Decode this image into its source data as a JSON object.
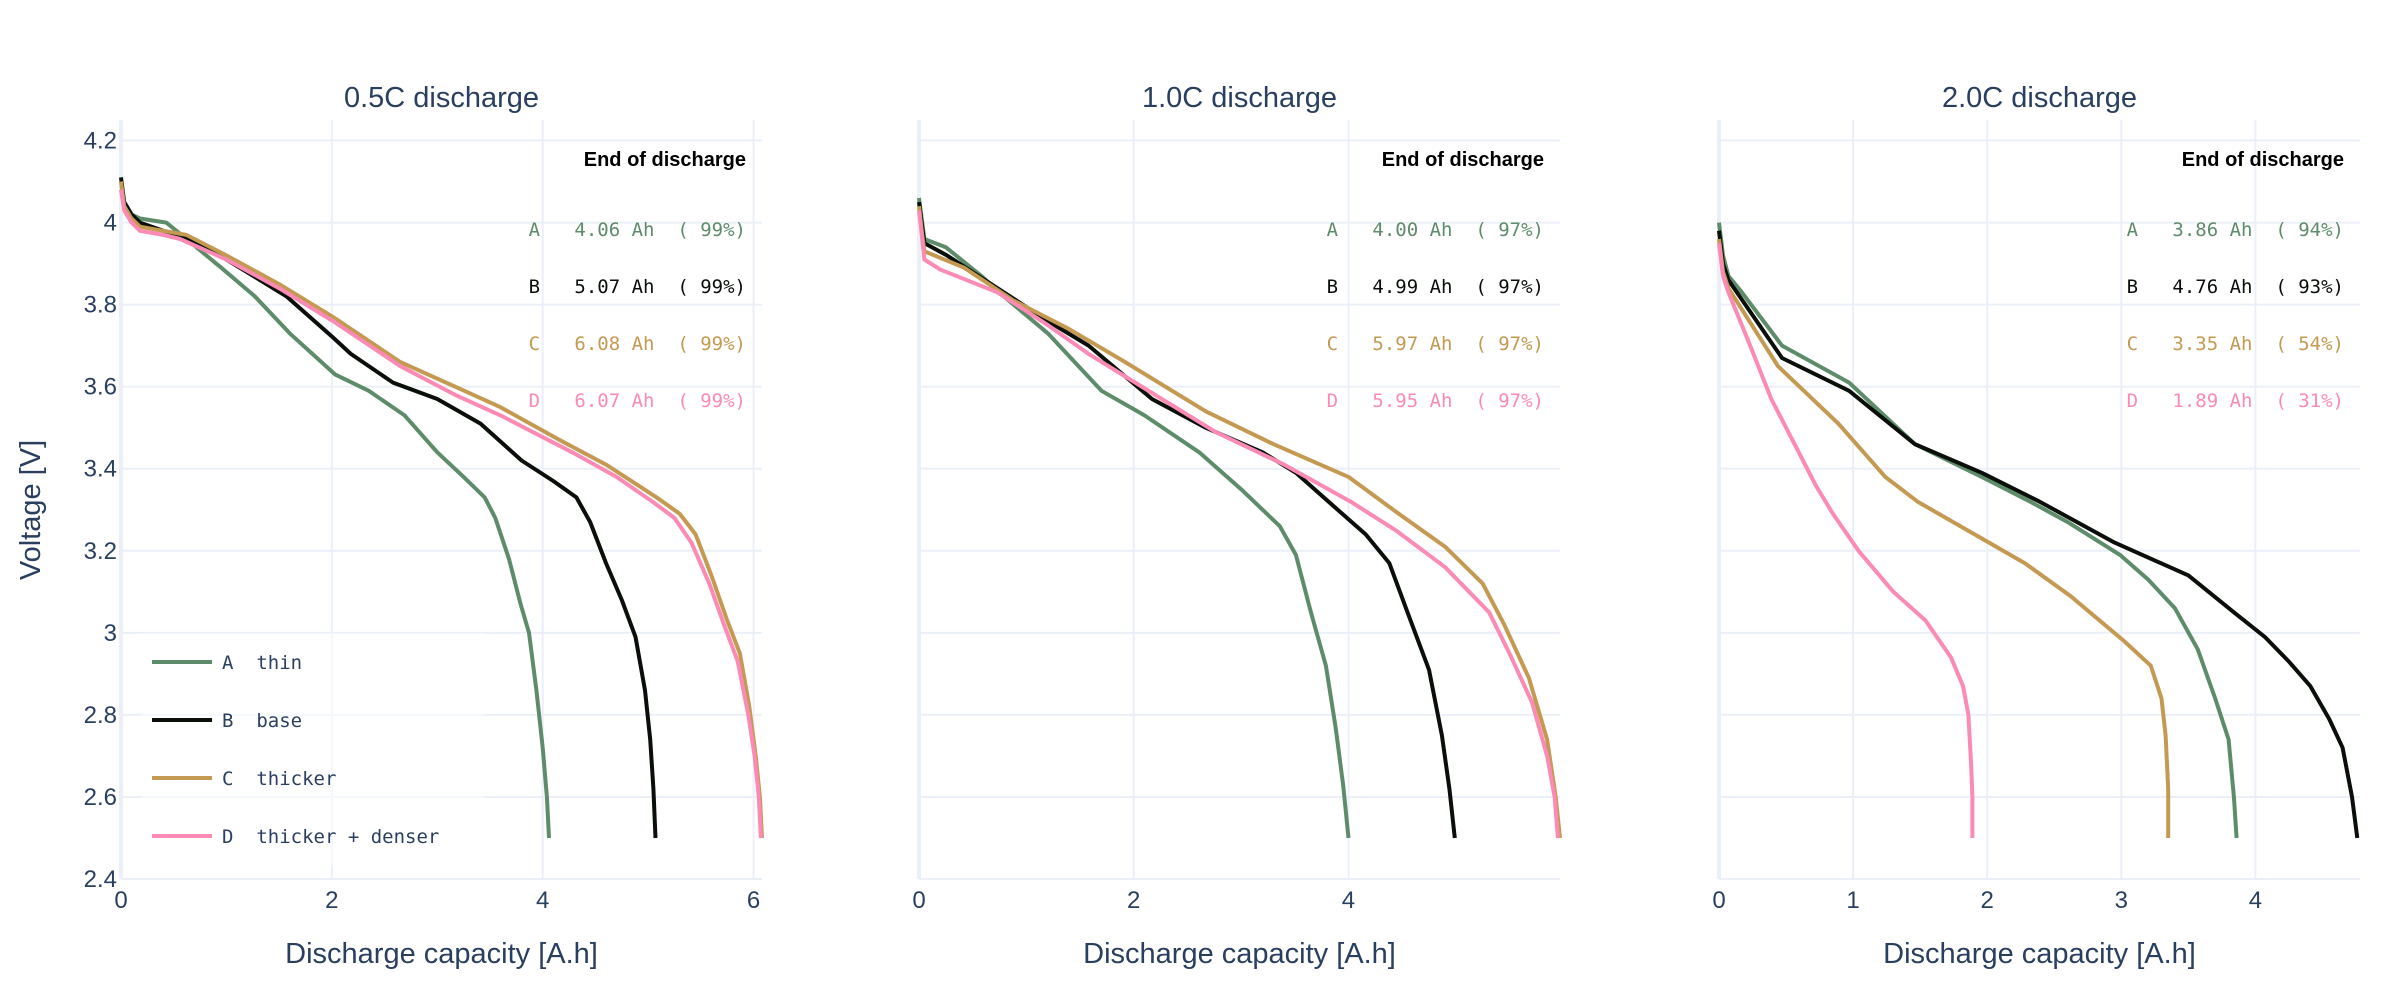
{
  "chart_data": {
    "type": "line",
    "ylabel": "Voltage [V]",
    "ylim": [
      2.4,
      4.25
    ],
    "yticks": [
      2.4,
      2.6,
      2.8,
      3.0,
      3.2,
      3.4,
      3.6,
      3.8,
      4.0,
      4.2
    ],
    "ytick_labels": [
      "2.4",
      "2.6",
      "2.8",
      "3",
      "3.2",
      "3.4",
      "3.6",
      "3.8",
      "4",
      "4.2"
    ],
    "grid": true,
    "legend": {
      "placement": "bottom-left of first panel",
      "entries": [
        {
          "key": "A",
          "name": "A  thin",
          "color": "#5e8c6a"
        },
        {
          "key": "B",
          "name": "B  base",
          "color": "#0a0f0a"
        },
        {
          "key": "C",
          "name": "C  thicker",
          "color": "#c49a52"
        },
        {
          "key": "D",
          "name": "D  thicker + denser",
          "color": "#fb8ab4"
        }
      ]
    },
    "panels": [
      {
        "title": "0.5C discharge",
        "xlabel": "Discharge capacity [A.h]",
        "xlim": [
          0,
          6.08
        ],
        "xticks": [
          0,
          2,
          4,
          6
        ],
        "xtick_labels": [
          "0",
          "2",
          "4",
          "6"
        ],
        "annotation": {
          "header": "End of discharge",
          "rows": [
            {
              "key": "A",
              "text": "A   4.06 Ah  ( 99%)",
              "color": "#5e8c6a"
            },
            {
              "key": "B",
              "text": "B   5.07 Ah  ( 99%)",
              "color": "#0a0f0a"
            },
            {
              "key": "C",
              "text": "C   6.08 Ah  ( 99%)",
              "color": "#c49a52"
            },
            {
              "key": "D",
              "text": "D   6.07 Ah  ( 99%)",
              "color": "#fb8ab4"
            }
          ]
        },
        "series": [
          {
            "name": "A",
            "color": "#5e8c6a",
            "x": [
              0,
              0.03,
              0.1,
              0.18,
              0.43,
              0.62,
              0.95,
              1.27,
              1.6,
              2.03,
              2.35,
              2.69,
              3.0,
              3.25,
              3.45,
              3.55,
              3.68,
              3.79,
              3.87,
              3.94,
              4.0,
              4.04,
              4.06
            ],
            "y": [
              4.1,
              4.05,
              4.02,
              4.01,
              4.0,
              3.96,
              3.89,
              3.82,
              3.73,
              3.63,
              3.59,
              3.53,
              3.44,
              3.38,
              3.33,
              3.28,
              3.18,
              3.07,
              3.0,
              2.86,
              2.72,
              2.6,
              2.5
            ]
          },
          {
            "name": "B",
            "color": "#0a0f0a",
            "x": [
              0,
              0.03,
              0.1,
              0.18,
              0.4,
              0.56,
              1.0,
              1.57,
              2.01,
              2.18,
              2.58,
              3.0,
              3.41,
              3.8,
              4.1,
              4.32,
              4.45,
              4.6,
              4.75,
              4.88,
              4.97,
              5.02,
              5.05,
              5.07
            ],
            "y": [
              4.11,
              4.05,
              4.02,
              4.0,
              3.98,
              3.97,
              3.91,
              3.82,
              3.72,
              3.68,
              3.61,
              3.57,
              3.51,
              3.42,
              3.37,
              3.33,
              3.27,
              3.17,
              3.08,
              2.99,
              2.86,
              2.74,
              2.62,
              2.5
            ]
          },
          {
            "name": "C",
            "color": "#c49a52",
            "x": [
              0,
              0.03,
              0.1,
              0.18,
              0.4,
              0.62,
              1.0,
              1.5,
              2.01,
              2.65,
              3.17,
              3.6,
              4.16,
              4.6,
              5.08,
              5.3,
              5.45,
              5.6,
              5.75,
              5.87,
              5.96,
              6.02,
              6.06,
              6.08
            ],
            "y": [
              4.1,
              4.04,
              4.01,
              3.99,
              3.98,
              3.97,
              3.92,
              3.85,
              3.77,
              3.66,
              3.6,
              3.55,
              3.47,
              3.41,
              3.33,
              3.29,
              3.24,
              3.14,
              3.03,
              2.95,
              2.82,
              2.7,
              2.6,
              2.5
            ]
          },
          {
            "name": "D",
            "color": "#fb8ab4",
            "x": [
              0,
              0.03,
              0.1,
              0.18,
              0.4,
              0.56,
              1.0,
              1.5,
              2.01,
              2.65,
              3.17,
              3.6,
              4.28,
              4.7,
              5.04,
              5.25,
              5.41,
              5.58,
              5.72,
              5.85,
              5.95,
              6.01,
              6.05,
              6.07
            ],
            "y": [
              4.08,
              4.03,
              4.0,
              3.98,
              3.97,
              3.96,
              3.91,
              3.84,
              3.76,
              3.65,
              3.58,
              3.53,
              3.44,
              3.38,
              3.32,
              3.28,
              3.22,
              3.12,
              3.02,
              2.93,
              2.8,
              2.7,
              2.6,
              2.5
            ]
          }
        ]
      },
      {
        "title": "1.0C discharge",
        "xlabel": "Discharge capacity [A.h]",
        "xlim": [
          0,
          5.97
        ],
        "xticks": [
          0,
          2,
          4
        ],
        "xtick_labels": [
          "0",
          "2",
          "4"
        ],
        "annotation": {
          "header": "End of discharge",
          "rows": [
            {
              "key": "A",
              "text": "A   4.00 Ah  ( 97%)",
              "color": "#5e8c6a"
            },
            {
              "key": "B",
              "text": "B   4.99 Ah  ( 97%)",
              "color": "#0a0f0a"
            },
            {
              "key": "C",
              "text": "C   5.97 Ah  ( 97%)",
              "color": "#c49a52"
            },
            {
              "key": "D",
              "text": "D   5.95 Ah  ( 97%)",
              "color": "#fb8ab4"
            }
          ]
        },
        "series": [
          {
            "name": "A",
            "color": "#5e8c6a",
            "x": [
              0,
              0.03,
              0.05,
              0.25,
              0.58,
              0.79,
              1.2,
              1.45,
              1.7,
              2.1,
              2.61,
              3.0,
              3.36,
              3.51,
              3.65,
              3.79,
              3.88,
              3.95,
              4.0
            ],
            "y": [
              4.06,
              4.0,
              3.96,
              3.94,
              3.87,
              3.82,
              3.73,
              3.66,
              3.59,
              3.53,
              3.44,
              3.35,
              3.26,
              3.19,
              3.05,
              2.92,
              2.77,
              2.63,
              2.5
            ]
          },
          {
            "name": "B",
            "color": "#0a0f0a",
            "x": [
              0,
              0.03,
              0.05,
              0.26,
              0.79,
              1.2,
              1.58,
              2.17,
              2.67,
              3.2,
              3.51,
              3.9,
              4.16,
              4.38,
              4.55,
              4.75,
              4.87,
              4.94,
              4.99
            ],
            "y": [
              4.05,
              3.99,
              3.95,
              3.92,
              3.83,
              3.76,
              3.7,
              3.57,
              3.5,
              3.44,
              3.39,
              3.3,
              3.24,
              3.17,
              3.05,
              2.91,
              2.75,
              2.62,
              2.5
            ]
          },
          {
            "name": "C",
            "color": "#c49a52",
            "x": [
              0,
              0.03,
              0.05,
              0.42,
              0.88,
              1.4,
              1.92,
              2.67,
              3.3,
              4.0,
              4.47,
              4.9,
              5.25,
              5.45,
              5.68,
              5.85,
              5.93,
              5.97
            ],
            "y": [
              4.04,
              3.97,
              3.93,
              3.89,
              3.81,
              3.74,
              3.66,
              3.54,
              3.46,
              3.38,
              3.29,
              3.21,
              3.12,
              3.02,
              2.89,
              2.74,
              2.6,
              2.5
            ]
          },
          {
            "name": "D",
            "color": "#fb8ab4",
            "x": [
              0,
              0.03,
              0.05,
              0.2,
              0.73,
              1.2,
              1.58,
              2.2,
              2.76,
              3.4,
              4.02,
              4.44,
              4.9,
              5.31,
              5.5,
              5.71,
              5.85,
              5.92,
              5.95
            ],
            "y": [
              4.03,
              3.96,
              3.91,
              3.885,
              3.83,
              3.75,
              3.68,
              3.58,
              3.49,
              3.41,
              3.32,
              3.25,
              3.16,
              3.05,
              2.95,
              2.83,
              2.7,
              2.6,
              2.5
            ]
          }
        ]
      },
      {
        "title": "2.0C discharge",
        "xlabel": "Discharge capacity [A.h]",
        "xlim": [
          0,
          4.78
        ],
        "xticks": [
          0,
          1,
          2,
          3,
          4
        ],
        "xtick_labels": [
          "0",
          "1",
          "2",
          "3",
          "4"
        ],
        "annotation": {
          "header": "End of discharge",
          "rows": [
            {
              "key": "A",
              "text": "A   3.86 Ah  ( 94%)",
              "color": "#5e8c6a"
            },
            {
              "key": "B",
              "text": "B   4.76 Ah  ( 93%)",
              "color": "#0a0f0a"
            },
            {
              "key": "C",
              "text": "C   3.35 Ah  ( 54%)",
              "color": "#c49a52"
            },
            {
              "key": "D",
              "text": "D   1.89 Ah  ( 31%)",
              "color": "#fb8ab4"
            }
          ]
        },
        "series": [
          {
            "name": "A",
            "color": "#5e8c6a",
            "x": [
              0,
              0.03,
              0.07,
              0.17,
              0.47,
              0.97,
              1.46,
              1.96,
              2.32,
              2.6,
              2.99,
              3.2,
              3.4,
              3.57,
              3.7,
              3.8,
              3.84,
              3.86
            ],
            "y": [
              4.0,
              3.92,
              3.87,
              3.83,
              3.7,
              3.61,
              3.46,
              3.38,
              3.32,
              3.27,
              3.19,
              3.13,
              3.06,
              2.96,
              2.84,
              2.74,
              2.6,
              2.5
            ]
          },
          {
            "name": "B",
            "color": "#0a0f0a",
            "x": [
              0,
              0.03,
              0.07,
              0.47,
              0.97,
              1.46,
              1.96,
              2.39,
              2.95,
              3.5,
              3.84,
              4.07,
              4.25,
              4.41,
              4.55,
              4.65,
              4.72,
              4.76
            ],
            "y": [
              3.98,
              3.9,
              3.86,
              3.67,
              3.59,
              3.46,
              3.39,
              3.32,
              3.22,
              3.14,
              3.05,
              2.99,
              2.93,
              2.87,
              2.79,
              2.72,
              2.6,
              2.5
            ]
          },
          {
            "name": "C",
            "color": "#c49a52",
            "x": [
              0,
              0.03,
              0.07,
              0.44,
              0.89,
              1.24,
              1.48,
              1.96,
              2.28,
              2.62,
              3.02,
              3.22,
              3.3,
              3.33,
              3.35,
              3.35
            ],
            "y": [
              3.96,
              3.88,
              3.84,
              3.65,
              3.51,
              3.38,
              3.32,
              3.23,
              3.17,
              3.09,
              2.98,
              2.92,
              2.84,
              2.75,
              2.62,
              2.5
            ]
          },
          {
            "name": "D",
            "color": "#fb8ab4",
            "x": [
              0,
              0.03,
              0.07,
              0.22,
              0.39,
              0.72,
              0.85,
              1.04,
              1.3,
              1.54,
              1.73,
              1.82,
              1.86,
              1.88,
              1.89,
              1.89
            ],
            "y": [
              3.95,
              3.87,
              3.83,
              3.71,
              3.57,
              3.36,
              3.29,
              3.2,
              3.1,
              3.03,
              2.94,
              2.87,
              2.8,
              2.68,
              2.6,
              2.5
            ]
          }
        ]
      }
    ]
  }
}
